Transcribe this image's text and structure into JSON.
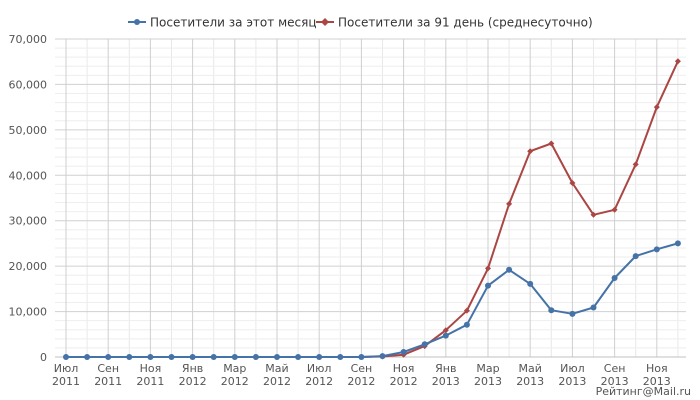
{
  "chart_data": {
    "type": "line",
    "title": "",
    "xlabel": "",
    "ylabel": "",
    "x": [
      "2011-07",
      "2011-08",
      "2011-09",
      "2011-10",
      "2011-11",
      "2011-12",
      "2012-01",
      "2012-02",
      "2012-03",
      "2012-04",
      "2012-05",
      "2012-06",
      "2012-07",
      "2012-08",
      "2012-09",
      "2012-10",
      "2012-11",
      "2012-12",
      "2013-01",
      "2013-02",
      "2013-03",
      "2013-04",
      "2013-05",
      "2013-06",
      "2013-07",
      "2013-08",
      "2013-09",
      "2013-10",
      "2013-11",
      "2013-12"
    ],
    "x_tick_labels": [
      {
        "month": "Июл",
        "year": "2011"
      },
      {
        "month": "Сен",
        "year": "2011"
      },
      {
        "month": "Ноя",
        "year": "2011"
      },
      {
        "month": "Янв",
        "year": "2012"
      },
      {
        "month": "Мар",
        "year": "2012"
      },
      {
        "month": "Май",
        "year": "2012"
      },
      {
        "month": "Июл",
        "year": "2012"
      },
      {
        "month": "Сен",
        "year": "2012"
      },
      {
        "month": "Ноя",
        "year": "2012"
      },
      {
        "month": "Янв",
        "year": "2013"
      },
      {
        "month": "Мар",
        "year": "2013"
      },
      {
        "month": "Май",
        "year": "2013"
      },
      {
        "month": "Июл",
        "year": "2013"
      },
      {
        "month": "Сен",
        "year": "2013"
      },
      {
        "month": "Ноя",
        "year": "2013"
      }
    ],
    "ylim": [
      0,
      70000
    ],
    "y_ticks": [
      0,
      10000,
      20000,
      30000,
      40000,
      50000,
      60000,
      70000
    ],
    "y_tick_labels": [
      "0",
      "10,000",
      "20,000",
      "30,000",
      "40,000",
      "50,000",
      "60,000",
      "70,000"
    ],
    "grid": true,
    "legend_position": "top-center",
    "series": [
      {
        "name": "Посетители за этот месяц",
        "color": "#4572a7",
        "marker": "circle",
        "values": [
          0,
          0,
          0,
          0,
          0,
          0,
          0,
          0,
          0,
          0,
          0,
          0,
          0,
          0,
          0,
          200,
          1100,
          2800,
          4700,
          7100,
          15700,
          19200,
          16100,
          10300,
          9500,
          10900,
          17400,
          22200,
          23700,
          25000
        ]
      },
      {
        "name": "Посетители за 91 день (среднесуточно)",
        "color": "#aa4643",
        "marker": "diamond",
        "values": [
          0,
          0,
          0,
          0,
          0,
          0,
          0,
          0,
          0,
          0,
          0,
          0,
          0,
          0,
          0,
          100,
          500,
          2400,
          5900,
          10200,
          19500,
          33700,
          45300,
          47000,
          38300,
          31300,
          32400,
          42400,
          55000,
          65100
        ]
      }
    ]
  },
  "watermark": "Рейтинг@Mail.ru"
}
